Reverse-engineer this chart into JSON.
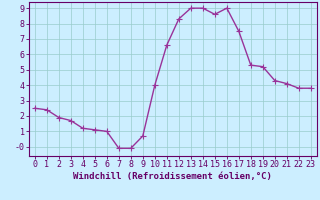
{
  "x": [
    0,
    1,
    2,
    3,
    4,
    5,
    6,
    7,
    8,
    9,
    10,
    11,
    12,
    13,
    14,
    15,
    16,
    17,
    18,
    19,
    20,
    21,
    22,
    23
  ],
  "y": [
    2.5,
    2.4,
    1.9,
    1.7,
    1.2,
    1.1,
    1.0,
    -0.1,
    -0.1,
    0.7,
    4.0,
    6.6,
    8.3,
    9.0,
    9.0,
    8.6,
    9.0,
    7.5,
    5.3,
    5.2,
    4.3,
    4.1,
    3.8,
    3.8
  ],
  "line_color": "#993399",
  "marker": "+",
  "marker_size": 4,
  "linewidth": 1.0,
  "bg_color": "#cceeff",
  "grid_color": "#99cccc",
  "xlabel": "Windchill (Refroidissement éolien,°C)",
  "xlabel_fontsize": 6.5,
  "xlim": [
    -0.5,
    23.5
  ],
  "ylim": [
    -0.6,
    9.4
  ],
  "xticks": [
    0,
    1,
    2,
    3,
    4,
    5,
    6,
    7,
    8,
    9,
    10,
    11,
    12,
    13,
    14,
    15,
    16,
    17,
    18,
    19,
    20,
    21,
    22,
    23
  ],
  "yticks": [
    0,
    1,
    2,
    3,
    4,
    5,
    6,
    7,
    8,
    9
  ],
  "ytick_labels": [
    "-0",
    "1",
    "2",
    "3",
    "4",
    "5",
    "6",
    "7",
    "8",
    "9"
  ],
  "tick_fontsize": 6.0
}
